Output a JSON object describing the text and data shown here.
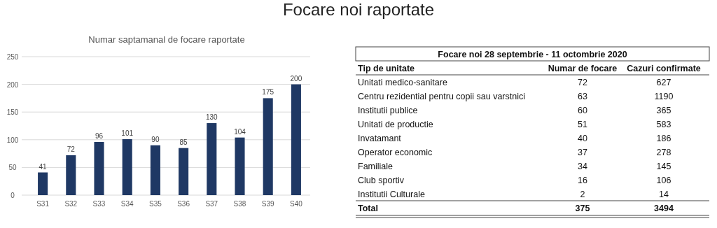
{
  "chart_data": [
    {
      "type": "bar",
      "title": "Focare noi raportate",
      "subtitle": "Numar saptamanal de focare raportate",
      "categories": [
        "S31",
        "S32",
        "S33",
        "S34",
        "S35",
        "S36",
        "S37",
        "S38",
        "S39",
        "S40"
      ],
      "values": [
        41,
        72,
        96,
        101,
        90,
        85,
        130,
        104,
        175,
        200
      ],
      "color": "#1f3864",
      "ylim": [
        0,
        250
      ],
      "yticks": [
        0,
        50,
        100,
        150,
        200,
        250
      ],
      "grid": "y",
      "data_labels": true
    },
    {
      "type": "other",
      "title": "Focare noi 28 septembrie - 11 octombrie 2020",
      "ylabel": "Tip de unitate",
      "categories": [
        "Unitati medico-sanitare",
        "Centru rezidential pentru copii sau varstnici",
        "Institutii publice",
        "Unitati de productie",
        "Invatamant",
        "Operator economic",
        "Familiale",
        "Club sportiv",
        "Institutii Culturale"
      ],
      "series": [
        {
          "name": "Numar de focare",
          "values": [
            72,
            63,
            60,
            51,
            40,
            37,
            34,
            16,
            2
          ]
        },
        {
          "name": "Cazuri confirmate",
          "values": [
            627,
            1190,
            365,
            583,
            186,
            278,
            145,
            106,
            14
          ]
        }
      ],
      "data_labels": true,
      "totals": [
        "375",
        "3494"
      ],
      "annotations": [
        "Total"
      ]
    }
  ]
}
